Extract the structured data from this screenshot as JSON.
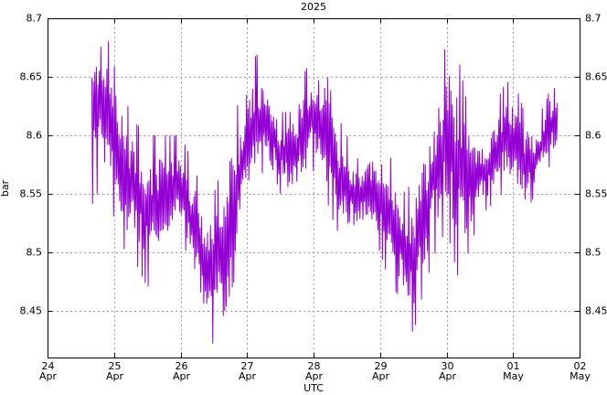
{
  "chart_data": {
    "type": "line",
    "title": "2025",
    "xlabel": "UTC",
    "ylabel": "bar",
    "ylim": [
      8.41,
      8.7
    ],
    "xlim": [
      "2025-04-24T00:00",
      "2025-05-02T00:00"
    ],
    "grid": true,
    "y_ticks": [
      "8.45",
      "8.5",
      "8.55",
      "8.6",
      "8.65",
      "8.7"
    ],
    "x_ticks": [
      {
        "day": "24",
        "month": "Apr"
      },
      {
        "day": "25",
        "month": "Apr"
      },
      {
        "day": "26",
        "month": "Apr"
      },
      {
        "day": "27",
        "month": "Apr"
      },
      {
        "day": "28",
        "month": "Apr"
      },
      {
        "day": "29",
        "month": "Apr"
      },
      {
        "day": "30",
        "month": "Apr"
      },
      {
        "day": "01",
        "month": "May"
      },
      {
        "day": "02",
        "month": "May"
      }
    ],
    "series": [
      {
        "color": "#9400d3",
        "x": [
          "2025-04-24T16:00",
          "2025-04-24T20:00",
          "2025-04-25T00:00",
          "2025-04-25T04:00",
          "2025-04-25T08:00",
          "2025-04-25T12:00",
          "2025-04-25T16:00",
          "2025-04-25T20:00",
          "2025-04-26T00:00",
          "2025-04-26T04:00",
          "2025-04-26T08:00",
          "2025-04-26T12:00",
          "2025-04-26T16:00",
          "2025-04-26T20:00",
          "2025-04-27T00:00",
          "2025-04-27T04:00",
          "2025-04-27T08:00",
          "2025-04-27T12:00",
          "2025-04-27T16:00",
          "2025-04-27T20:00",
          "2025-04-28T00:00",
          "2025-04-28T04:00",
          "2025-04-28T08:00",
          "2025-04-28T12:00",
          "2025-04-28T16:00",
          "2025-04-28T20:00",
          "2025-04-29T00:00",
          "2025-04-29T04:00",
          "2025-04-29T08:00",
          "2025-04-29T12:00",
          "2025-04-29T16:00",
          "2025-04-29T20:00",
          "2025-04-30T00:00",
          "2025-04-30T04:00",
          "2025-04-30T08:00",
          "2025-04-30T12:00",
          "2025-04-30T16:00",
          "2025-04-30T20:00",
          "2025-05-01T00:00",
          "2025-05-01T04:00",
          "2025-05-01T08:00",
          "2025-05-01T12:00",
          "2025-05-01T16:00"
        ],
        "y_min": [
          8.54,
          8.56,
          8.53,
          8.5,
          8.49,
          8.47,
          8.48,
          8.5,
          8.52,
          8.48,
          8.44,
          8.42,
          8.45,
          8.48,
          8.53,
          8.56,
          8.58,
          8.55,
          8.54,
          8.55,
          8.57,
          8.55,
          8.52,
          8.51,
          8.51,
          8.52,
          8.5,
          8.47,
          8.46,
          8.43,
          8.47,
          8.5,
          8.52,
          8.48,
          8.5,
          8.53,
          8.54,
          8.55,
          8.55,
          8.53,
          8.55,
          8.57,
          8.58
        ],
        "y_max": [
          8.69,
          8.7,
          8.66,
          8.63,
          8.61,
          8.6,
          8.6,
          8.6,
          8.6,
          8.58,
          8.55,
          8.55,
          8.58,
          8.62,
          8.66,
          8.67,
          8.64,
          8.62,
          8.62,
          8.65,
          8.67,
          8.66,
          8.62,
          8.6,
          8.58,
          8.59,
          8.6,
          8.58,
          8.55,
          8.56,
          8.6,
          8.64,
          8.68,
          8.67,
          8.62,
          8.6,
          8.61,
          8.64,
          8.65,
          8.62,
          8.61,
          8.63,
          8.66
        ]
      }
    ]
  }
}
